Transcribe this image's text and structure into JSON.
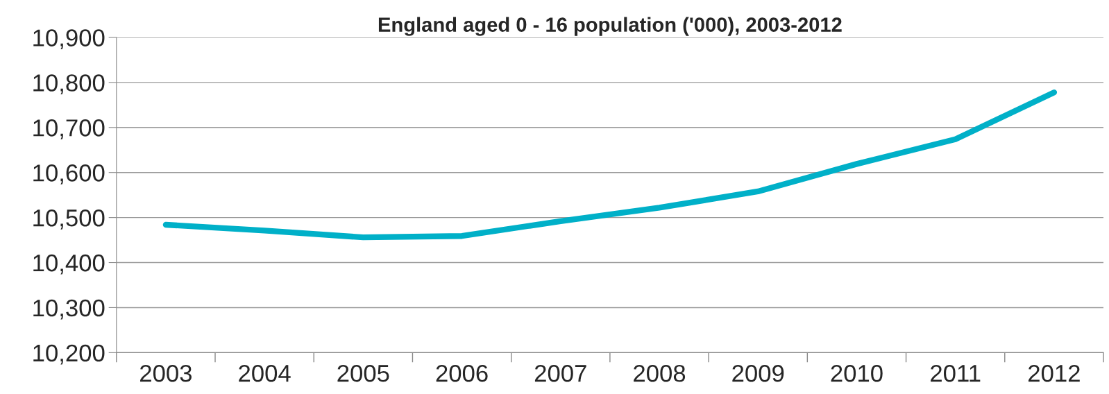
{
  "chart_data": {
    "type": "line",
    "title": "England aged 0 - 16 population ('000), 2003-2012",
    "categories": [
      "2003",
      "2004",
      "2005",
      "2006",
      "2007",
      "2008",
      "2009",
      "2010",
      "2011",
      "2012"
    ],
    "series": [
      {
        "color": "#00b0c8",
        "values": [
          10484,
          10471,
          10456,
          10459,
          10492,
          10522,
          10558,
          10619,
          10674,
          10778
        ]
      }
    ],
    "ylim": [
      10200,
      10900
    ],
    "yticks": [
      {
        "value": 10200,
        "label": "10,200"
      },
      {
        "value": 10300,
        "label": "10,300"
      },
      {
        "value": 10400,
        "label": "10,400"
      },
      {
        "value": 10500,
        "label": "10,500"
      },
      {
        "value": 10600,
        "label": "10,600"
      },
      {
        "value": 10700,
        "label": "10,700"
      },
      {
        "value": 10800,
        "label": "10,800"
      },
      {
        "value": 10900,
        "label": "10,900"
      }
    ],
    "grid": "y",
    "marker": "none",
    "line_style": "solid"
  }
}
